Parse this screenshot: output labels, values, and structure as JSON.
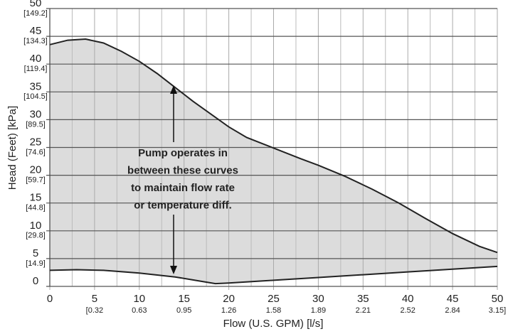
{
  "chart_data": {
    "type": "area",
    "xlabel": "Flow (U.S. GPM) [l/s]",
    "ylabel": "Head (Feet) [kPa]",
    "annotation": [
      "Pump operates in",
      "between these curves",
      "to maintain flow rate",
      "or temperature diff."
    ],
    "xlim": [
      0,
      50
    ],
    "ylim": [
      0,
      50
    ],
    "xticks": [
      0,
      5,
      10,
      15,
      20,
      25,
      30,
      35,
      40,
      45,
      50
    ],
    "xminor": [
      2.5,
      7.5,
      12.5,
      17.5,
      22.5,
      27.5,
      32.5,
      37.5,
      42.5,
      47.5
    ],
    "x_secondary_labels": [
      {
        "value": 5,
        "label": "[0.32"
      },
      {
        "value": 10,
        "label": "0.63"
      },
      {
        "value": 15,
        "label": "0.95"
      },
      {
        "value": 20,
        "label": "1.26"
      },
      {
        "value": 25,
        "label": "1.58"
      },
      {
        "value": 30,
        "label": "1.89"
      },
      {
        "value": 35,
        "label": "2.21"
      },
      {
        "value": 40,
        "label": "2.52"
      },
      {
        "value": 45,
        "label": "2.84"
      },
      {
        "value": 50,
        "label": "3.15]"
      }
    ],
    "yticks": [
      0,
      5,
      10,
      15,
      20,
      25,
      30,
      35,
      40,
      45,
      50
    ],
    "y_secondary_labels": [
      {
        "value": 5,
        "label": "[14.9]"
      },
      {
        "value": 10,
        "label": "[29.8]"
      },
      {
        "value": 15,
        "label": "[44.8]"
      },
      {
        "value": 20,
        "label": "[59.7]"
      },
      {
        "value": 25,
        "label": "[74.6]"
      },
      {
        "value": 30,
        "label": "[89.5]"
      },
      {
        "value": 35,
        "label": "[104.5]"
      },
      {
        "value": 40,
        "label": "[119.4]"
      },
      {
        "value": 45,
        "label": "[134.3]"
      },
      {
        "value": 50,
        "label": "[149.2]"
      }
    ],
    "grid": true,
    "fill_color": "#dcdcdc",
    "series": [
      {
        "color": "#222222",
        "x": [
          0,
          2,
          4,
          6,
          8,
          10,
          12,
          14,
          16,
          18,
          20,
          22,
          25,
          28,
          30,
          33,
          36,
          39,
          42,
          45,
          48,
          50
        ],
        "values": [
          43.5,
          44.3,
          44.5,
          43.8,
          42.3,
          40.5,
          38.3,
          35.8,
          33.3,
          31,
          28.7,
          26.8,
          24.9,
          23,
          21.8,
          19.8,
          17.5,
          15,
          12.2,
          9.5,
          7.2,
          6.1
        ]
      },
      {
        "color": "#222222",
        "x": [
          0,
          3,
          6,
          10,
          14,
          17,
          18.5,
          20,
          25,
          30,
          35,
          40,
          45,
          50
        ],
        "values": [
          2.9,
          3,
          2.9,
          2.4,
          1.7,
          0.9,
          0.5,
          0.6,
          1.1,
          1.6,
          2.1,
          2.6,
          3.1,
          3.6
        ]
      }
    ]
  }
}
